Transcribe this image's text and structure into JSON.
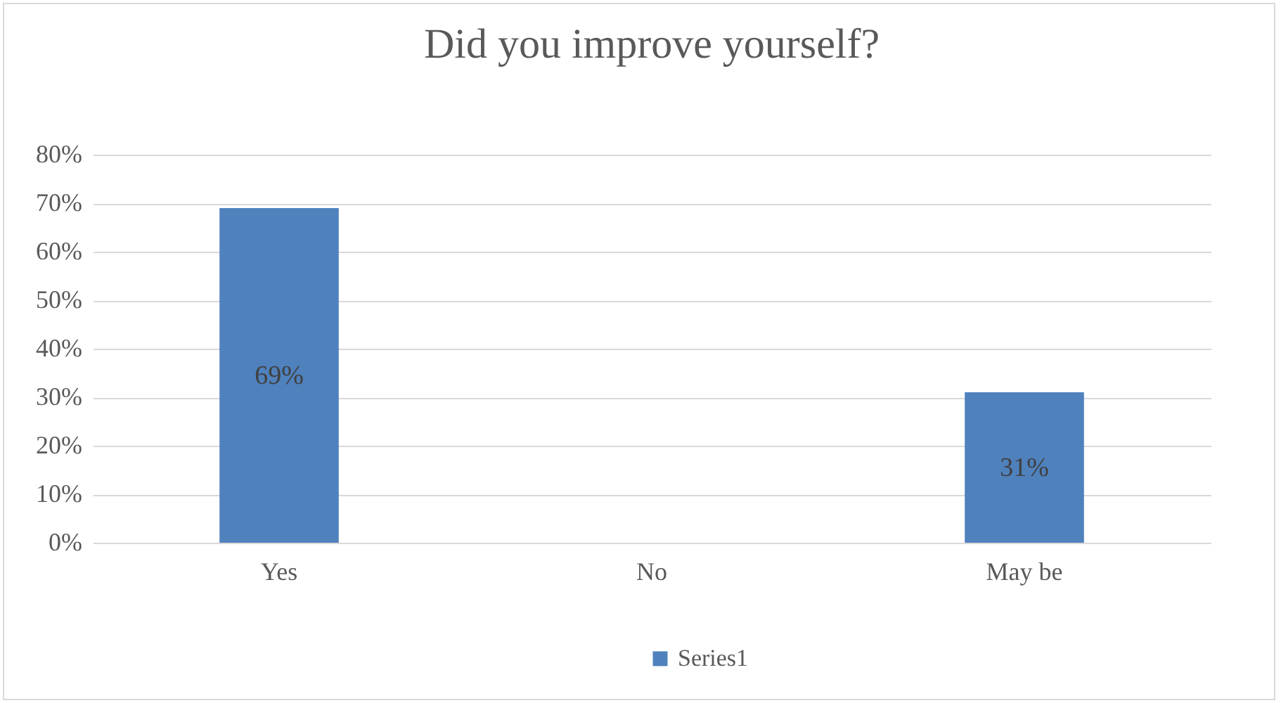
{
  "chart_data": {
    "type": "bar",
    "title": "Did you improve yourself?",
    "categories": [
      "Yes",
      "No",
      "May be"
    ],
    "series": [
      {
        "name": "Series1",
        "color": "#4f81bd",
        "values": [
          69,
          0,
          31
        ],
        "value_labels": [
          "69%",
          null,
          "31%"
        ]
      }
    ],
    "ylim": [
      0,
      80
    ],
    "yticks": [
      {
        "value": 0,
        "label": "0%"
      },
      {
        "value": 10,
        "label": "10%"
      },
      {
        "value": 20,
        "label": "20%"
      },
      {
        "value": 30,
        "label": "30%"
      },
      {
        "value": 40,
        "label": "40%"
      },
      {
        "value": 50,
        "label": "50%"
      },
      {
        "value": 60,
        "label": "60%"
      },
      {
        "value": 70,
        "label": "70%"
      },
      {
        "value": 80,
        "label": "80%"
      }
    ],
    "grid": "y",
    "legend": "bottom"
  }
}
